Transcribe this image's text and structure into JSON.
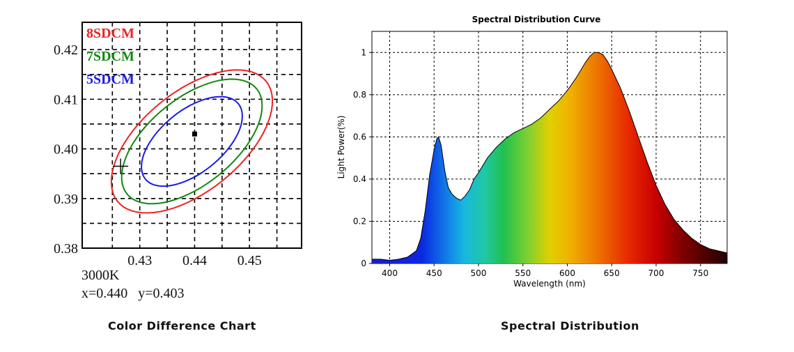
{
  "left_chart": {
    "caption": "Color Difference Chart",
    "cct_label": "3000K",
    "xy_readout": "x=0.440   y=0.403",
    "x_ticks": [
      "0.43",
      "0.44",
      "0.45"
    ],
    "y_ticks": [
      "0.42",
      "0.41",
      "0.40",
      "0.39",
      "0.38"
    ],
    "ellipse_labels": [
      "8SDCM",
      "7SDCM",
      "5SDCM"
    ],
    "colors": {
      "8SDCM": "#ee2222",
      "7SDCM": "#118811",
      "5SDCM": "#1a1aee"
    }
  },
  "right_chart": {
    "caption": "Spectral Distribution"
  },
  "chart_data": [
    {
      "type": "scatter",
      "title": "",
      "xlabel": "",
      "ylabel": "",
      "xlim": [
        0.4195,
        0.4595
      ],
      "ylim": [
        0.38,
        0.4255
      ],
      "grid": true,
      "center": {
        "x": 0.44,
        "y": 0.403
      },
      "target_cross": {
        "x": 0.4265,
        "y": 0.3965
      },
      "ellipses": [
        {
          "name": "8SDCM",
          "center": [
            0.4395,
            0.4015
          ],
          "semi_major": 0.0182,
          "semi_minor": 0.0096,
          "angle_deg": 44,
          "color": "#ee2222"
        },
        {
          "name": "7SDCM",
          "center": [
            0.4395,
            0.4015
          ],
          "semi_major": 0.0159,
          "semi_minor": 0.0083,
          "angle_deg": 44,
          "color": "#118811"
        },
        {
          "name": "5SDCM",
          "center": [
            0.4395,
            0.4015
          ],
          "semi_major": 0.0114,
          "semi_minor": 0.006,
          "angle_deg": 44,
          "color": "#1a1aee"
        }
      ]
    },
    {
      "type": "area",
      "title": "Spectral Distribution Curve",
      "xlabel": "Wavelength  (nm)",
      "ylabel": "Light Power(%)",
      "xlim": [
        380,
        780
      ],
      "ylim": [
        0,
        1.1
      ],
      "x_ticks": [
        400,
        450,
        500,
        550,
        600,
        650,
        700,
        750
      ],
      "y_ticks": [
        0,
        0.2,
        0.4,
        0.6,
        0.8,
        1
      ],
      "grid": true,
      "x": [
        380,
        390,
        400,
        410,
        420,
        430,
        435,
        440,
        445,
        450,
        453,
        455,
        458,
        462,
        466,
        470,
        475,
        480,
        485,
        490,
        495,
        500,
        510,
        520,
        530,
        540,
        550,
        560,
        570,
        580,
        590,
        600,
        610,
        620,
        625,
        630,
        635,
        640,
        645,
        650,
        660,
        670,
        680,
        690,
        700,
        710,
        720,
        730,
        740,
        750,
        760,
        770,
        780
      ],
      "y": [
        0.02,
        0.02,
        0.015,
        0.02,
        0.03,
        0.06,
        0.12,
        0.25,
        0.42,
        0.54,
        0.59,
        0.6,
        0.56,
        0.44,
        0.36,
        0.33,
        0.31,
        0.3,
        0.32,
        0.35,
        0.4,
        0.43,
        0.5,
        0.55,
        0.59,
        0.62,
        0.64,
        0.66,
        0.69,
        0.73,
        0.77,
        0.82,
        0.88,
        0.95,
        0.98,
        1.0,
        1.0,
        0.99,
        0.96,
        0.92,
        0.83,
        0.72,
        0.6,
        0.48,
        0.37,
        0.28,
        0.21,
        0.16,
        0.12,
        0.09,
        0.07,
        0.06,
        0.05
      ]
    }
  ]
}
